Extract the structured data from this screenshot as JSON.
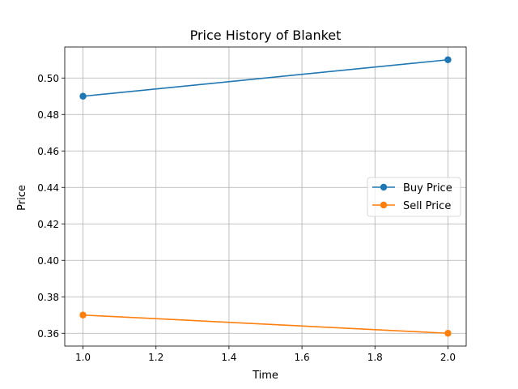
{
  "chart_data": {
    "type": "line",
    "title": "Price History of Blanket",
    "xlabel": "Time",
    "ylabel": "Price",
    "x": [
      1.0,
      2.0
    ],
    "xlim": [
      0.95,
      2.05
    ],
    "ylim": [
      0.353,
      0.517
    ],
    "xticks": [
      1.0,
      1.2,
      1.4,
      1.6,
      1.8,
      2.0
    ],
    "xtick_labels": [
      "1.0",
      "1.2",
      "1.4",
      "1.6",
      "1.8",
      "2.0"
    ],
    "yticks": [
      0.36,
      0.38,
      0.4,
      0.42,
      0.44,
      0.46,
      0.48,
      0.5
    ],
    "ytick_labels": [
      "0.36",
      "0.38",
      "0.40",
      "0.42",
      "0.44",
      "0.46",
      "0.48",
      "0.50"
    ],
    "grid": true,
    "legend_position": "center-right",
    "series": [
      {
        "name": "Buy Price",
        "values": [
          0.49,
          0.51
        ],
        "color": "#1f77b4",
        "marker": "circle"
      },
      {
        "name": "Sell Price",
        "values": [
          0.37,
          0.36
        ],
        "color": "#ff7f0e",
        "marker": "circle"
      }
    ]
  }
}
